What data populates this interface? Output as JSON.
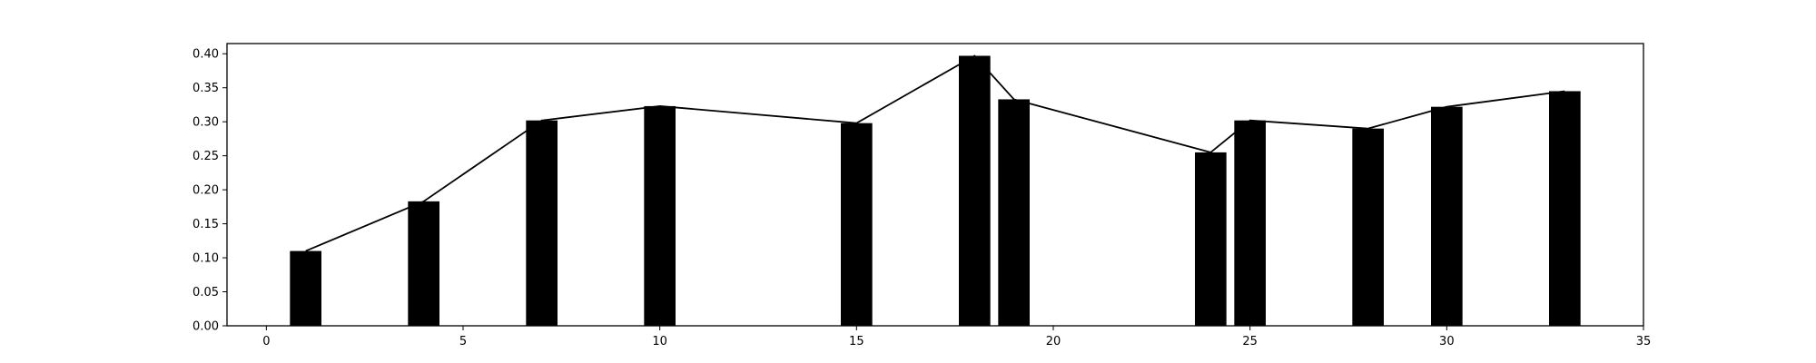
{
  "chart_data": {
    "type": "bar",
    "x": [
      1,
      4,
      7,
      10,
      15,
      18,
      19,
      24,
      25,
      28,
      30,
      33
    ],
    "values": [
      0.11,
      0.183,
      0.302,
      0.323,
      0.298,
      0.397,
      0.333,
      0.255,
      0.302,
      0.29,
      0.322,
      0.345
    ],
    "line_overlay": true,
    "title": "",
    "xlabel": "",
    "ylabel": "",
    "xlim": [
      -1,
      35
    ],
    "ylim": [
      0,
      0.415
    ],
    "xticks": [
      0,
      5,
      10,
      15,
      20,
      25,
      30,
      35
    ],
    "yticks": [
      0.0,
      0.05,
      0.1,
      0.15,
      0.2,
      0.25,
      0.3,
      0.35,
      0.4
    ],
    "xtick_labels": [
      "0",
      "5",
      "10",
      "15",
      "20",
      "25",
      "30",
      "35"
    ],
    "ytick_labels": [
      "0.00",
      "0.05",
      "0.10",
      "0.15",
      "0.20",
      "0.25",
      "0.30",
      "0.35",
      "0.40"
    ],
    "grid": false,
    "legend": "none",
    "colors": {
      "bar": "#000000",
      "line": "#000000",
      "axes": "#000000",
      "background": "#ffffff"
    }
  }
}
